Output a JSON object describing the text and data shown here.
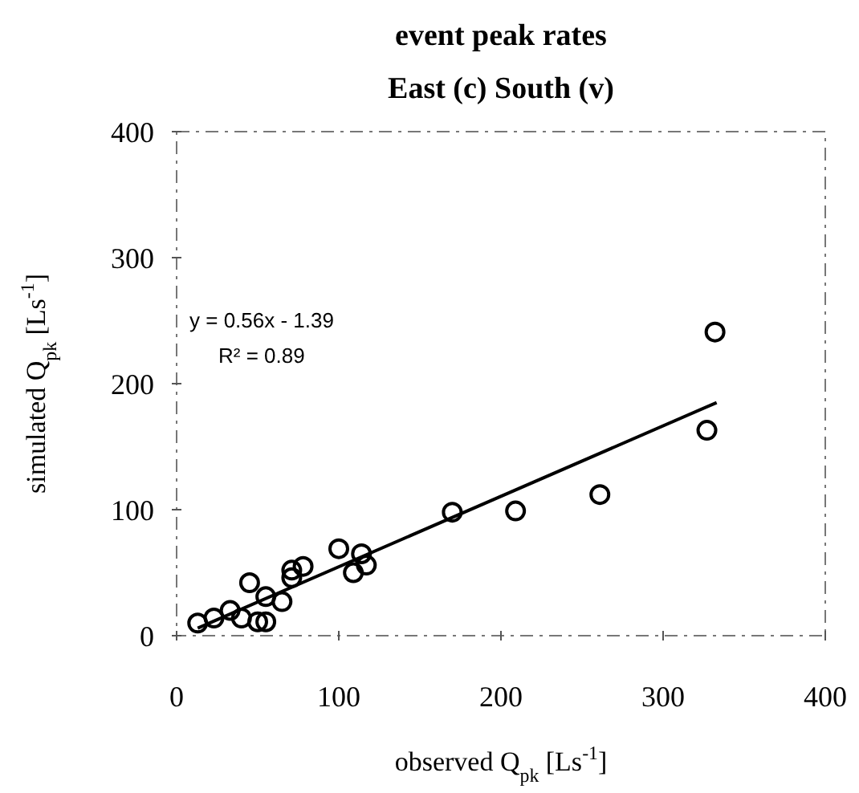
{
  "chart_data": {
    "type": "scatter",
    "title": "event peak rates",
    "subtitle": "East (c)  South (v)",
    "xlabel": "observed Q$_{pk}$ [Ls$^{-1}$]",
    "ylabel": "simulated Q$_{pk}$ [Ls$^{-1}$]",
    "xlim": [
      0,
      400
    ],
    "ylim": [
      0,
      400
    ],
    "xticks": [
      0,
      100,
      200,
      300,
      400
    ],
    "yticks": [
      0,
      100,
      200,
      300,
      400
    ],
    "grid": false,
    "annotations": [
      "y = 0.56x - 1.39",
      "R² = 0.89"
    ],
    "series": [
      {
        "color": "#000000",
        "marker": "circle",
        "x": [
          13,
          23,
          33,
          40,
          45,
          50,
          55,
          55,
          65,
          71,
          71,
          78,
          100,
          114,
          117,
          109,
          170,
          209,
          261,
          327,
          332
        ],
        "values": [
          10,
          14,
          20,
          14,
          42,
          11,
          11,
          31,
          27,
          52,
          46,
          55,
          69,
          65,
          56,
          50,
          98,
          99,
          112,
          163,
          241
        ]
      },
      {
        "type": "line",
        "color": "#000000",
        "marker": "none",
        "line_style": "solid",
        "x": [
          13,
          333
        ],
        "values": [
          6,
          185
        ]
      }
    ]
  }
}
